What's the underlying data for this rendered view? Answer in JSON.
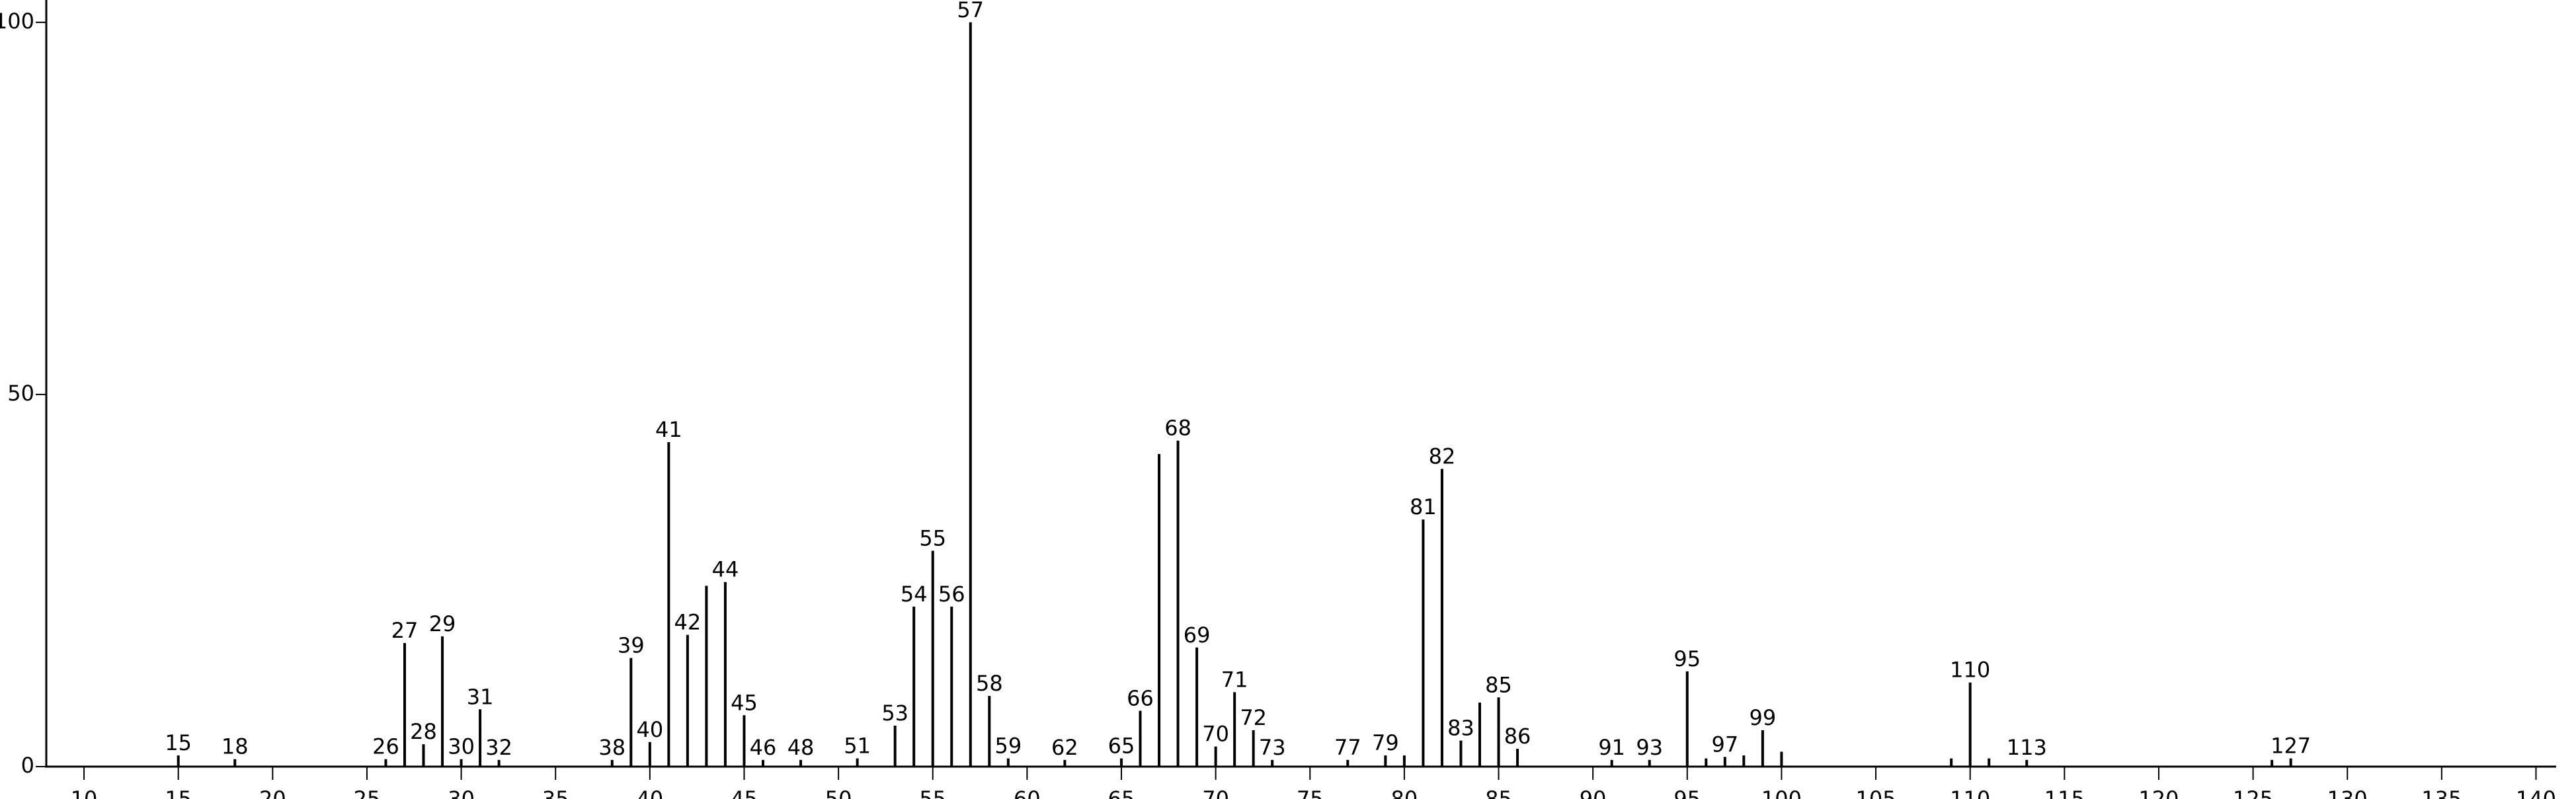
{
  "chart_data": {
    "type": "bar",
    "color": "#000000",
    "x": [
      15,
      18,
      26,
      27,
      28,
      29,
      30,
      31,
      32,
      38,
      39,
      40,
      41,
      42,
      43,
      44,
      45,
      46,
      48,
      51,
      53,
      54,
      55,
      56,
      57,
      58,
      59,
      62,
      65,
      66,
      67,
      68,
      69,
      70,
      71,
      72,
      73,
      77,
      79,
      80,
      81,
      82,
      83,
      84,
      85,
      86,
      91,
      93,
      95,
      96,
      97,
      98,
      99,
      100,
      109,
      110,
      111,
      113,
      126,
      127
    ],
    "values": [
      1.5,
      1,
      1,
      16.6,
      3,
      17.5,
      1,
      7.7,
      0.9,
      0.9,
      14.6,
      3.3,
      43.6,
      17.7,
      24.3,
      24.8,
      6.9,
      0.9,
      0.9,
      1.1,
      5.5,
      21.5,
      29,
      21.5,
      100,
      9.5,
      1.1,
      0.9,
      1.1,
      7.5,
      42,
      43.8,
      16,
      2.7,
      10,
      4.9,
      0.9,
      0.9,
      1.5,
      1.5,
      33.2,
      40,
      3.5,
      8.6,
      9.3,
      2.4,
      0.9,
      0.9,
      12.8,
      1.1,
      1.3,
      1.5,
      4.9,
      2,
      1.1,
      11.3,
      1.1,
      0.9,
      0.9,
      1.1
    ],
    "labels": [
      15,
      18,
      26,
      27,
      28,
      29,
      30,
      31,
      32,
      38,
      39,
      40,
      41,
      42,
      null,
      44,
      45,
      46,
      48,
      51,
      53,
      54,
      55,
      56,
      57,
      58,
      59,
      62,
      65,
      66,
      null,
      68,
      69,
      70,
      71,
      72,
      73,
      77,
      79,
      null,
      81,
      82,
      83,
      null,
      85,
      86,
      91,
      93,
      95,
      null,
      97,
      null,
      99,
      null,
      null,
      110,
      null,
      113,
      null,
      127
    ],
    "xlim": [
      8,
      141
    ],
    "xticks": [
      10,
      15,
      20,
      25,
      30,
      35,
      40,
      45,
      50,
      55,
      60,
      65,
      70,
      75,
      80,
      85,
      90,
      95,
      100,
      105,
      110,
      115,
      120,
      125,
      130,
      135,
      140
    ],
    "ylim": [
      0,
      103
    ],
    "yticks": [
      0,
      50,
      100
    ]
  }
}
